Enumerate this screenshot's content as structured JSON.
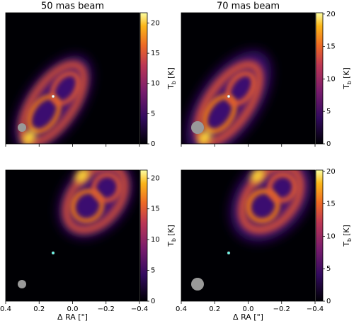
{
  "chart_data": [
    {
      "type": "image",
      "title": "50 mas beam",
      "colorbar_label": [
        "T",
        "b",
        "[K]"
      ],
      "clim": [
        0,
        21.7
      ],
      "cticks": [
        0,
        5,
        10,
        15,
        20
      ],
      "xlim": [
        0.4,
        -0.4
      ],
      "xticks": [
        0.4,
        0.2,
        0,
        -0.2,
        -0.4
      ]
    },
    {
      "type": "image",
      "title": "70 mas beam",
      "colorbar_label": [
        "T",
        "b",
        "[K]"
      ],
      "clim": [
        0,
        20.2
      ],
      "cticks": [
        0,
        5,
        10,
        15,
        20
      ],
      "xlim": [
        0.4,
        -0.4
      ],
      "xticks": [
        0.4,
        0.2,
        0,
        -0.2,
        -0.4
      ]
    },
    {
      "type": "image",
      "colorbar_label": [
        "T",
        "b",
        "[K]"
      ],
      "clim": [
        0,
        21.3
      ],
      "cticks": [
        0,
        5,
        10,
        15,
        20
      ],
      "xlim": [
        0.4,
        -0.4
      ],
      "xticks": [
        0.4,
        0.2,
        {
          "value": 0,
          "label": "0.0"
        },
        {
          "value": -0.2,
          "label": "−0.2"
        },
        {
          "value": -0.4,
          "label": "−0.4"
        }
      ],
      "xlabel": "Δ RA [\"]"
    },
    {
      "type": "image",
      "colorbar_label": [
        "T",
        "b",
        "[K]"
      ],
      "clim": [
        0,
        20.2
      ],
      "cticks": [
        0,
        5,
        10,
        15,
        20
      ],
      "xlim": [
        0.4,
        -0.4
      ],
      "xticks": [
        0.4,
        0.2,
        {
          "value": 0,
          "label": "0.0"
        },
        {
          "value": -0.2,
          "label": "−0.2"
        },
        {
          "value": -0.4,
          "label": "−0.4"
        }
      ],
      "xlabel": "Δ RA [\"]"
    }
  ]
}
